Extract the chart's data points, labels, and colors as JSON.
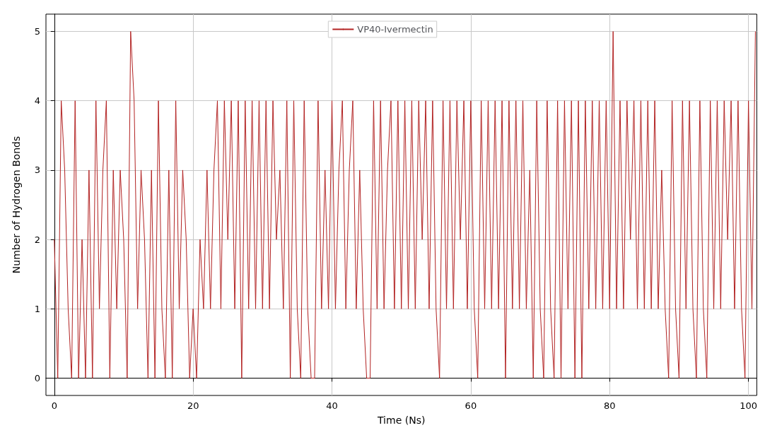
{
  "chart_data": {
    "type": "line",
    "xlabel": "Time (Ns)",
    "ylabel": "Number of Hydrogen Bonds",
    "xlim": [
      -1.2,
      101.2
    ],
    "ylim": [
      -0.25,
      5.25
    ],
    "xticks": [
      0,
      20,
      40,
      60,
      80,
      100
    ],
    "yticks": [
      0,
      1,
      2,
      3,
      4,
      5
    ],
    "grid": true,
    "legend": "top",
    "series": [
      {
        "name": "VP40-Ivermectin",
        "color": "#b22222",
        "x": [
          0,
          0.5,
          1,
          1.5,
          2,
          2.5,
          3,
          3.5,
          4,
          4.5,
          5,
          5.5,
          6,
          6.5,
          7,
          7.5,
          8,
          8.5,
          9,
          9.5,
          10,
          10.5,
          11,
          11.5,
          12,
          12.5,
          13,
          13.5,
          14,
          14.5,
          15,
          15.5,
          16,
          16.5,
          17,
          17.5,
          18,
          18.5,
          19,
          19.5,
          20,
          20.5,
          21,
          21.5,
          22,
          22.5,
          23,
          23.5,
          24,
          24.5,
          25,
          25.5,
          26,
          26.5,
          27,
          27.5,
          28,
          28.5,
          29,
          29.5,
          30,
          30.5,
          31,
          31.5,
          32,
          32.5,
          33,
          33.5,
          34,
          34.5,
          35,
          35.5,
          36,
          36.5,
          37,
          37.5,
          38,
          38.5,
          39,
          39.5,
          40,
          40.5,
          41,
          41.5,
          42,
          42.5,
          43,
          43.5,
          44,
          44.5,
          45,
          45.5,
          46,
          46.5,
          47,
          47.5,
          48,
          48.5,
          49,
          49.5,
          50,
          50.5,
          51,
          51.5,
          52,
          52.5,
          53,
          53.5,
          54,
          54.5,
          55,
          55.5,
          56,
          56.5,
          57,
          57.5,
          58,
          58.5,
          59,
          59.5,
          60,
          60.5,
          61,
          61.5,
          62,
          62.5,
          63,
          63.5,
          64,
          64.5,
          65,
          65.5,
          66,
          66.5,
          67,
          67.5,
          68,
          68.5,
          69,
          69.5,
          70,
          70.5,
          71,
          71.5,
          72,
          72.5,
          73,
          73.5,
          74,
          74.5,
          75,
          75.5,
          76,
          76.5,
          77,
          77.5,
          78,
          78.5,
          79,
          79.5,
          80,
          80.5,
          81,
          81.5,
          82,
          82.5,
          83,
          83.5,
          84,
          84.5,
          85,
          85.5,
          86,
          86.5,
          87,
          87.5,
          88,
          88.5,
          89,
          89.5,
          90,
          90.5,
          91,
          91.5,
          92,
          92.5,
          93,
          93.5,
          94,
          94.5,
          95,
          95.5,
          96,
          96.5,
          97,
          97.5,
          98,
          98.5,
          99,
          99.5,
          100,
          100.5,
          101
        ],
        "values": [
          2,
          0,
          4,
          3,
          1,
          0,
          4,
          0,
          2,
          0,
          3,
          0,
          4,
          1,
          3,
          4,
          0,
          3,
          1,
          3,
          2,
          0,
          5,
          4,
          1,
          3,
          2,
          0,
          3,
          0,
          4,
          1,
          0,
          3,
          0,
          4,
          1,
          3,
          2,
          0,
          1,
          0,
          2,
          1,
          3,
          1,
          3,
          4,
          1,
          4,
          2,
          4,
          1,
          4,
          0,
          4,
          1,
          4,
          1,
          4,
          1,
          4,
          1,
          4,
          2,
          3,
          1,
          4,
          0,
          4,
          1,
          0,
          4,
          1,
          0,
          0,
          4,
          1,
          3,
          1,
          4,
          1,
          3,
          4,
          1,
          3,
          4,
          1,
          3,
          1,
          0,
          0,
          4,
          1,
          4,
          1,
          3,
          4,
          1,
          4,
          1,
          4,
          1,
          4,
          1,
          4,
          2,
          4,
          1,
          4,
          1,
          0,
          4,
          1,
          4,
          1,
          4,
          2,
          4,
          1,
          4,
          1,
          0,
          4,
          1,
          4,
          1,
          4,
          1,
          4,
          0,
          4,
          1,
          4,
          1,
          4,
          1,
          3,
          0,
          4,
          1,
          0,
          4,
          1,
          0,
          4,
          0,
          4,
          1,
          4,
          0,
          4,
          0,
          4,
          1,
          4,
          1,
          4,
          1,
          4,
          1,
          5,
          1,
          4,
          1,
          4,
          2,
          4,
          1,
          4,
          1,
          4,
          1,
          4,
          1,
          3,
          1,
          0,
          4,
          1,
          0,
          4,
          1,
          4,
          1,
          0,
          4,
          1,
          0,
          4,
          1,
          4,
          1,
          4,
          2,
          4,
          1,
          4,
          1,
          0,
          4,
          1,
          5
        ]
      }
    ]
  }
}
